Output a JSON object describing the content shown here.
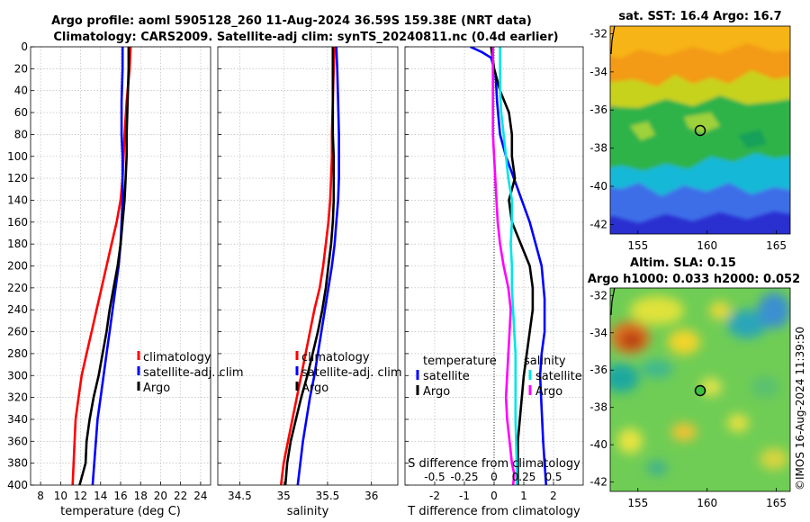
{
  "titles": {
    "line1": "Argo profile: aoml 5905128_260 11-Aug-2024 36.59S 159.38E (NRT data)",
    "line2": "Climatology: CARS2009. Satellite-adj clim: synTS_20240811.nc (0.4d earlier)"
  },
  "credit": "©IMOS 16-Aug-2024 11:39:50",
  "colors": {
    "climatology": "#ff0000",
    "satellite": "#0000ff",
    "argo": "#000000",
    "cyan": "#00e5e5",
    "magenta": "#ff00ff",
    "grid": "#a8a8a8"
  },
  "chart_data": [
    {
      "type": "line",
      "title": "",
      "xlabel": "temperature (deg C)",
      "ylabel": "",
      "xlim": [
        7,
        25
      ],
      "ylim": [
        400,
        0
      ],
      "xticks": [
        8,
        10,
        12,
        14,
        16,
        18,
        20,
        22,
        24
      ],
      "yticks": [
        0,
        20,
        40,
        60,
        80,
        100,
        120,
        140,
        160,
        180,
        200,
        220,
        240,
        260,
        280,
        300,
        320,
        340,
        360,
        380,
        400
      ],
      "legend": {
        "position": "lower-right",
        "entries": [
          "climatology",
          "satellite-adj. clim",
          "Argo"
        ]
      },
      "series": [
        {
          "name": "climatology",
          "color": "red",
          "x": [
            17.0,
            16.9,
            16.6,
            16.4,
            16.3,
            16.2,
            16.0,
            15.6,
            15.1,
            14.6,
            14.1,
            13.6,
            13.1,
            12.6,
            12.1,
            11.8,
            11.5,
            11.2
          ],
          "y": [
            0,
            20,
            50,
            80,
            100,
            120,
            140,
            160,
            180,
            200,
            220,
            240,
            260,
            280,
            300,
            320,
            340,
            400
          ]
        },
        {
          "name": "satellite-adj. clim",
          "color": "blue",
          "x": [
            16.2,
            16.2,
            16.1,
            16.1,
            16.2,
            16.2,
            16.2,
            16.1,
            16.0,
            15.8,
            15.5,
            15.2,
            14.9,
            14.6,
            14.3,
            14.0,
            13.7,
            13.2
          ],
          "y": [
            0,
            20,
            50,
            80,
            100,
            120,
            140,
            160,
            180,
            200,
            220,
            240,
            260,
            280,
            300,
            320,
            340,
            400
          ]
        },
        {
          "name": "Argo",
          "color": "black",
          "x": [
            16.8,
            16.8,
            16.7,
            16.6,
            16.6,
            16.5,
            16.4,
            16.2,
            16.0,
            15.7,
            15.3,
            14.9,
            14.6,
            14.2,
            13.8,
            13.3,
            12.9,
            12.6,
            12.5,
            12.2,
            11.9
          ],
          "y": [
            0,
            20,
            50,
            80,
            100,
            120,
            140,
            160,
            180,
            200,
            220,
            240,
            260,
            280,
            300,
            320,
            340,
            360,
            380,
            390,
            400
          ]
        }
      ]
    },
    {
      "type": "line",
      "title": "",
      "xlabel": "salinity",
      "ylabel": "",
      "xlim": [
        34.25,
        36.3
      ],
      "ylim": [
        400,
        0
      ],
      "xticks": [
        34.5,
        35,
        35.5,
        36
      ],
      "xticklabels": [
        "34.5",
        "35",
        "35.5",
        "36"
      ],
      "legend": {
        "position": "lower-right",
        "entries": [
          "climatology",
          "satellite-adj. clim",
          "Argo"
        ]
      },
      "series": [
        {
          "name": "climatology",
          "color": "red",
          "x": [
            35.58,
            35.57,
            35.56,
            35.55,
            35.55,
            35.54,
            35.53,
            35.51,
            35.48,
            35.45,
            35.41,
            35.35,
            35.3,
            35.25,
            35.2,
            35.15,
            35.1,
            35.05,
            35.0,
            34.97
          ],
          "y": [
            0,
            20,
            50,
            80,
            100,
            120,
            140,
            160,
            180,
            200,
            220,
            240,
            260,
            280,
            300,
            320,
            340,
            360,
            380,
            400
          ]
        },
        {
          "name": "satellite-adj. clim",
          "color": "blue",
          "x": [
            35.6,
            35.61,
            35.62,
            35.63,
            35.63,
            35.63,
            35.62,
            35.6,
            35.58,
            35.55,
            35.51,
            35.47,
            35.43,
            35.39,
            35.35,
            35.3,
            35.26,
            35.22,
            35.19,
            35.16
          ],
          "y": [
            0,
            20,
            50,
            80,
            100,
            120,
            140,
            160,
            180,
            200,
            220,
            240,
            260,
            280,
            300,
            320,
            340,
            360,
            380,
            400
          ]
        },
        {
          "name": "Argo",
          "color": "black",
          "x": [
            35.56,
            35.56,
            35.56,
            35.56,
            35.57,
            35.57,
            35.57,
            35.56,
            35.54,
            35.51,
            35.48,
            35.44,
            35.39,
            35.33,
            35.27,
            35.2,
            35.14,
            35.08,
            35.04,
            35.02
          ],
          "y": [
            0,
            20,
            50,
            80,
            100,
            120,
            140,
            160,
            180,
            200,
            220,
            240,
            260,
            280,
            300,
            320,
            340,
            360,
            380,
            400
          ]
        }
      ]
    },
    {
      "type": "line",
      "title": "",
      "xlabel": "T difference from climatology",
      "top_xlabel": "S difference from climatology",
      "xlim": [
        -3,
        3
      ],
      "ylim": [
        400,
        0
      ],
      "xticks": [
        -2,
        -1,
        0,
        1,
        2
      ],
      "top_xticks": [
        -0.5,
        -0.25,
        0,
        0.25,
        0.5
      ],
      "top_xticklabels": [
        "-0.5",
        "-0.25",
        "0",
        "0.25",
        "0.5"
      ],
      "legend_left": {
        "title": "temperature",
        "entries": [
          "satellite",
          "Argo"
        ]
      },
      "legend_right": {
        "title": "salinity",
        "entries": [
          "satellite",
          "Argo"
        ]
      },
      "series": [
        {
          "name": "T satellite",
          "color": "blue",
          "x": [
            -0.8,
            -0.4,
            -0.1,
            0.05,
            0.1,
            0.2,
            0.4,
            0.8,
            1.2,
            1.4,
            1.6,
            1.7,
            1.7,
            1.6,
            1.55,
            1.6,
            1.65,
            1.7,
            1.75
          ],
          "y": [
            0,
            5,
            10,
            25,
            50,
            80,
            100,
            130,
            160,
            180,
            200,
            230,
            260,
            280,
            300,
            330,
            360,
            380,
            400
          ]
        },
        {
          "name": "T Argo",
          "color": "black",
          "x": [
            -0.1,
            0.0,
            0.2,
            0.5,
            0.6,
            0.6,
            0.7,
            0.5,
            0.6,
            0.9,
            1.2,
            1.3,
            1.3,
            1.2,
            1.0,
            0.9,
            0.8,
            0.8,
            0.8
          ],
          "y": [
            0,
            20,
            40,
            60,
            80,
            100,
            120,
            140,
            160,
            180,
            200,
            220,
            240,
            260,
            300,
            330,
            360,
            380,
            400
          ]
        },
        {
          "name": "S satellite",
          "color": "cyan",
          "x": [
            0.05,
            0.05,
            0.05,
            0.06,
            0.08,
            0.1,
            0.12,
            0.15,
            0.15,
            0.14,
            0.15,
            0.15,
            0.16,
            0.17,
            0.18,
            0.18,
            0.18,
            0.19,
            0.19
          ],
          "y": [
            0,
            20,
            40,
            60,
            80,
            100,
            120,
            140,
            160,
            180,
            200,
            220,
            240,
            260,
            280,
            300,
            340,
            380,
            400
          ]
        },
        {
          "name": "S Argo",
          "color": "magenta",
          "x": [
            -0.01,
            -0.01,
            -0.01,
            0.0,
            0.01,
            0.02,
            0.03,
            0.05,
            0.08,
            0.12,
            0.14,
            0.13,
            0.12,
            0.11,
            0.1,
            0.11,
            0.13,
            0.15,
            0.17,
            0.16
          ],
          "y": [
            0,
            40,
            80,
            100,
            120,
            140,
            160,
            180,
            200,
            220,
            240,
            260,
            280,
            300,
            320,
            340,
            360,
            380,
            390,
            400
          ]
        }
      ]
    },
    {
      "type": "heatmap",
      "title": "sat. SST: 16.4 Argo: 16.7",
      "xlim": [
        153,
        166
      ],
      "ylim": [
        -42.5,
        -31.6
      ],
      "xticks": [
        155,
        160,
        165
      ],
      "yticks": [
        -32,
        -34,
        -36,
        -38,
        -40,
        -42
      ],
      "marker": {
        "lon": 159.4,
        "lat": -36.6
      }
    },
    {
      "type": "heatmap",
      "title": "Altim. SLA: 0.15",
      "subtitle": "Argo h1000: 0.033 h2000: 0.052",
      "xlim": [
        153,
        166
      ],
      "ylim": [
        -42.5,
        -31.6
      ],
      "xticks": [
        155,
        160,
        165
      ],
      "yticks": [
        -32,
        -34,
        -36,
        -38,
        -40,
        -42
      ],
      "marker": {
        "lon": 159.4,
        "lat": -36.6
      }
    }
  ],
  "legend_labels": {
    "climatology": "climatology",
    "satellite_adj": "satellite-adj. clim",
    "argo": "Argo",
    "satellite": "satellite",
    "temperature": "temperature",
    "salinity": "salinity"
  }
}
